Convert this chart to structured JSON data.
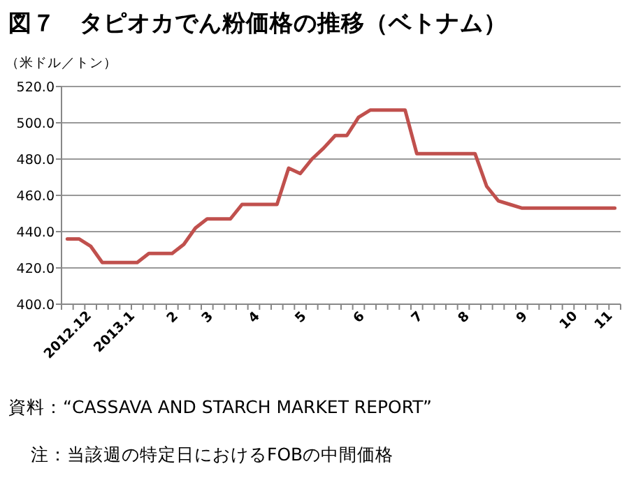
{
  "chart_data": {
    "type": "line",
    "title": "図７　タピオカでん粉価格の推移（ベトナム）",
    "ylabel": "（米ドル／トン）",
    "categories": [
      "2012.12",
      null,
      null,
      null,
      "2013.1",
      null,
      null,
      null,
      null,
      "2",
      null,
      null,
      "3",
      null,
      null,
      null,
      "4",
      null,
      null,
      null,
      "5",
      null,
      null,
      null,
      null,
      "6",
      null,
      null,
      null,
      null,
      "7",
      null,
      null,
      null,
      "8",
      null,
      null,
      null,
      null,
      "9",
      null,
      null,
      null,
      "10",
      null,
      null,
      "11",
      null
    ],
    "series": [
      {
        "color": "#c0504d",
        "values": [
          436,
          436,
          432,
          423,
          423,
          423,
          423,
          428,
          428,
          428,
          433,
          442,
          447,
          447,
          447,
          455,
          455,
          455,
          455,
          475,
          472,
          480,
          486,
          493,
          493,
          503,
          507,
          507,
          507,
          507,
          483,
          483,
          483,
          483,
          483,
          483,
          465,
          457,
          455,
          453,
          453,
          453,
          453,
          453,
          453,
          453,
          453,
          453
        ]
      }
    ],
    "ylim": [
      400,
      520
    ],
    "yticks": [
      {
        "value": 400,
        "label": "400.0"
      },
      {
        "value": 420,
        "label": "420.0"
      },
      {
        "value": 440,
        "label": "440.0"
      },
      {
        "value": 460,
        "label": "460.0"
      },
      {
        "value": 480,
        "label": "480.0"
      },
      {
        "value": 500,
        "label": "500.0"
      },
      {
        "value": 520,
        "label": "520.0"
      }
    ],
    "grid": "y",
    "marker": "none",
    "line_style": "solid",
    "annotations": [
      "資料：“CASSAVA AND STARCH MARKET REPORT”",
      "注：当該週の特定日におけるFOBの中間価格"
    ]
  }
}
